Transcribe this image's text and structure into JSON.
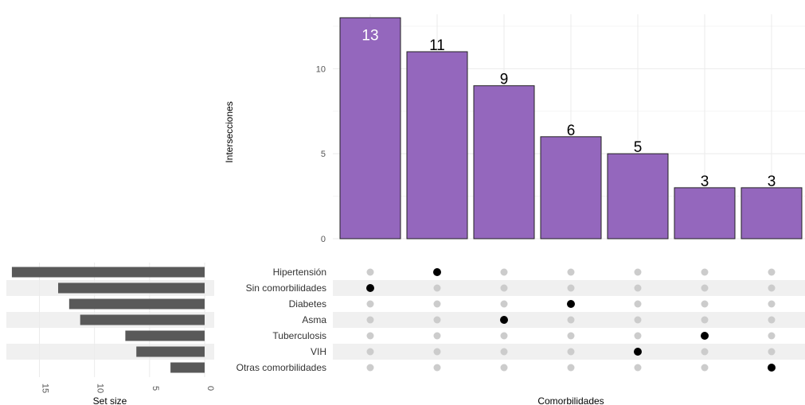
{
  "chart_data": {
    "type": "bar",
    "subtype": "upset",
    "intersections": {
      "ylabel": "Intersecciones",
      "xlabel": "Comorbilidades",
      "ylim": [
        0,
        13.2
      ],
      "yticks": [
        0,
        5,
        10
      ],
      "values": [
        13,
        11,
        9,
        6,
        5,
        3,
        3
      ],
      "labels": [
        "13",
        "11",
        "9",
        "6",
        "5",
        "3",
        "3"
      ],
      "active_set": [
        "Sin comorbilidades",
        "Hipertensión",
        "Asma",
        "Diabetes",
        "VIH",
        "Tuberculosis",
        "Otras comorbilidades"
      ],
      "bar_color": "#9467bd",
      "label_colors": [
        "#ffffff",
        "#000000",
        "#000000",
        "#000000",
        "#000000",
        "#000000",
        "#000000"
      ]
    },
    "sets": {
      "names": [
        "Hipertensión",
        "Sin comorbilidades",
        "Diabetes",
        "Asma",
        "Tuberculosis",
        "VIH",
        "Otras comorbilidades"
      ],
      "sizes": [
        17.5,
        13.3,
        12.3,
        11.3,
        7.2,
        6.2,
        3.1
      ],
      "xlabel": "Set size",
      "xticks": [
        "15",
        "10",
        "5",
        "0"
      ],
      "xlim": [
        0,
        18
      ],
      "bar_color": "#595959"
    },
    "matrix": {
      "dot_active_color": "#000000",
      "dot_inactive_color": "#cccccc",
      "stripe_color": "#f0f0f0"
    },
    "grid": true
  }
}
